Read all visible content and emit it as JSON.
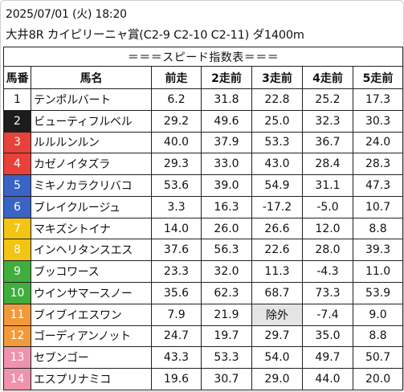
{
  "header": {
    "datetime": "2025/07/01 (火) 18:20",
    "race": "大井8R カイピリーニャ賞(C2-9 C2-10 C2-11) ダ1400m"
  },
  "table": {
    "title": "＝＝＝スピード指数表＝＝＝",
    "columns": [
      "馬番",
      "馬名",
      "前走",
      "2走前",
      "3走前",
      "4走前",
      "5走前"
    ],
    "gate_colors": {
      "1": {
        "bg": "#ffffff",
        "fg": "#111111"
      },
      "2": {
        "bg": "#1c1c1c",
        "fg": "#ffffff"
      },
      "3": {
        "bg": "#e8413a",
        "fg": "#ffffff"
      },
      "4": {
        "bg": "#e8413a",
        "fg": "#ffffff"
      },
      "5": {
        "bg": "#3a63c6",
        "fg": "#ffffff"
      },
      "6": {
        "bg": "#3a63c6",
        "fg": "#ffffff"
      },
      "7": {
        "bg": "#f2c414",
        "fg": "#ffffff"
      },
      "8": {
        "bg": "#f2c414",
        "fg": "#ffffff"
      },
      "9": {
        "bg": "#3fae3c",
        "fg": "#ffffff"
      },
      "10": {
        "bg": "#3fae3c",
        "fg": "#ffffff"
      },
      "11": {
        "bg": "#f29a3a",
        "fg": "#ffffff"
      },
      "12": {
        "bg": "#f29a3a",
        "fg": "#ffffff"
      },
      "13": {
        "bg": "#ef93ad",
        "fg": "#ffffff"
      },
      "14": {
        "bg": "#ef93ad",
        "fg": "#ffffff"
      }
    },
    "rows": [
      {
        "no": "1",
        "name": "テンポルバート",
        "v": [
          "6.2",
          "31.8",
          "22.8",
          "25.2",
          "17.3"
        ]
      },
      {
        "no": "2",
        "name": "ビューティフルベル",
        "v": [
          "29.2",
          "49.6",
          "25.0",
          "32.3",
          "30.3"
        ]
      },
      {
        "no": "3",
        "name": "ルルルンルン",
        "v": [
          "40.0",
          "37.9",
          "53.3",
          "36.7",
          "24.0"
        ]
      },
      {
        "no": "4",
        "name": "カゼノイタズラ",
        "v": [
          "29.3",
          "33.0",
          "43.0",
          "28.4",
          "28.3"
        ]
      },
      {
        "no": "5",
        "name": "ミキノカラクリバコ",
        "v": [
          "53.6",
          "39.0",
          "54.9",
          "31.1",
          "47.3"
        ]
      },
      {
        "no": "6",
        "name": "ブレイクルージュ",
        "v": [
          "3.3",
          "16.3",
          "-17.2",
          "-5.0",
          "10.7"
        ]
      },
      {
        "no": "7",
        "name": "マキズシトイナ",
        "v": [
          "14.0",
          "26.0",
          "26.6",
          "12.0",
          "8.8"
        ]
      },
      {
        "no": "8",
        "name": "インヘリタンスエス",
        "v": [
          "37.6",
          "56.3",
          "22.6",
          "28.0",
          "39.3"
        ]
      },
      {
        "no": "9",
        "name": "ブッコワース",
        "v": [
          "23.3",
          "32.0",
          "11.3",
          "-4.3",
          "11.0"
        ]
      },
      {
        "no": "10",
        "name": "ウインサマースノー",
        "v": [
          "35.6",
          "62.3",
          "68.7",
          "73.3",
          "53.9"
        ]
      },
      {
        "no": "11",
        "name": "ブイブイエスワン",
        "v": [
          "7.9",
          "21.9",
          "除外",
          "-7.4",
          "9.0"
        ]
      },
      {
        "no": "12",
        "name": "ゴーディアンノット",
        "v": [
          "24.7",
          "19.7",
          "29.7",
          "35.0",
          "8.8"
        ]
      },
      {
        "no": "13",
        "name": "セブンゴー",
        "v": [
          "43.3",
          "53.3",
          "54.0",
          "49.7",
          "50.7"
        ]
      },
      {
        "no": "14",
        "name": "エスプリナミコ",
        "v": [
          "19.6",
          "30.7",
          "29.0",
          "44.0",
          "20.0"
        ]
      }
    ],
    "excluded_text": "除外",
    "excluded_bg": "#e4e4e4"
  }
}
